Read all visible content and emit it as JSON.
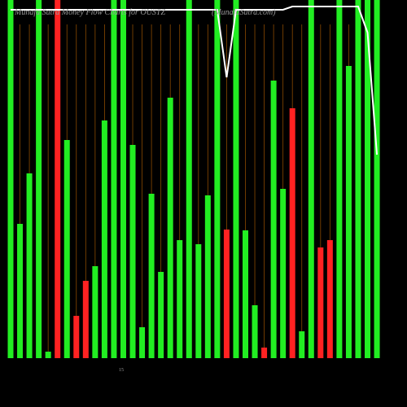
{
  "chart_data": {
    "type": "bar",
    "title": "Munafa Sutra Money Flow Charts for OUSTZ",
    "subtitle": "(MunafaSutra.com)",
    "annotation": "15",
    "categories": [
      null,
      null,
      null,
      null,
      null,
      null,
      null,
      null,
      null,
      null,
      null,
      null,
      null,
      null,
      null,
      null,
      null,
      null,
      null,
      null,
      null,
      null,
      null,
      null,
      null,
      null,
      null,
      null,
      null,
      null,
      null,
      null,
      null,
      null,
      null,
      null,
      null,
      null,
      null,
      null
    ],
    "values": [
      440,
      165,
      227,
      440,
      8,
      440,
      268,
      52,
      95,
      113,
      292,
      440,
      440,
      262,
      38,
      202,
      106,
      320,
      145,
      440,
      140,
      200,
      440,
      158,
      440,
      157,
      65,
      13,
      341,
      208,
      307,
      33,
      440,
      136,
      145,
      440,
      359,
      440,
      440,
      440
    ],
    "colors": [
      "#22ee22",
      "#22ee22",
      "#22ee22",
      "#22ee22",
      "#22ee22",
      "#ff2222",
      "#22ee22",
      "#ff2222",
      "#ff2222",
      "#22ee22",
      "#22ee22",
      "#22ee22",
      "#22ee22",
      "#22ee22",
      "#22ee22",
      "#22ee22",
      "#22ee22",
      "#22ee22",
      "#22ee22",
      "#22ee22",
      "#22ee22",
      "#22ee22",
      "#22ee22",
      "#ff2222",
      "#22ee22",
      "#22ee22",
      "#22ee22",
      "#ff2222",
      "#22ee22",
      "#22ee22",
      "#ff2222",
      "#22ee22",
      "#22ee22",
      "#ff2222",
      "#ff2222",
      "#22ee22",
      "#22ee22",
      "#22ee22",
      "#22ee22",
      "#22ee22"
    ],
    "line": {
      "color": "#ffffff",
      "values": [
        428,
        428,
        428,
        428,
        428,
        428,
        428,
        428,
        428,
        428,
        428,
        428,
        428,
        428,
        428,
        428,
        428,
        428,
        428,
        428,
        428,
        428,
        428,
        345,
        428,
        428,
        428,
        428,
        428,
        428,
        432,
        432,
        432,
        432,
        432,
        432,
        432,
        432,
        400,
        250
      ]
    },
    "ylim": [
      0,
      440
    ],
    "grid_color": "#8a4a00"
  }
}
